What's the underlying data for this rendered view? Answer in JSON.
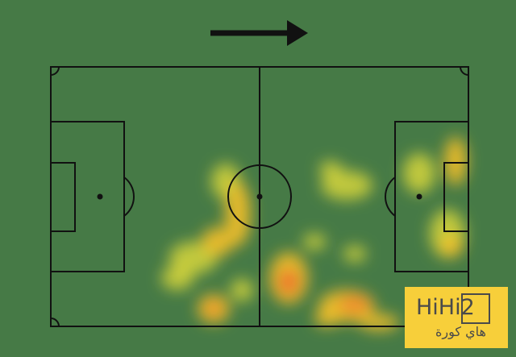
{
  "pitch": {
    "background_color": "#467a46",
    "line_color": "#111111",
    "attack_direction": "right",
    "direction_icon": "arrow-right-icon"
  },
  "heatmap": {
    "colors": [
      "#e8e23a",
      "#f4c02a",
      "#f08a2a",
      "#e8452a"
    ]
  },
  "logo": {
    "main": "HiHi2",
    "sub": "هاي كورة",
    "color": "#f7cf3a"
  }
}
